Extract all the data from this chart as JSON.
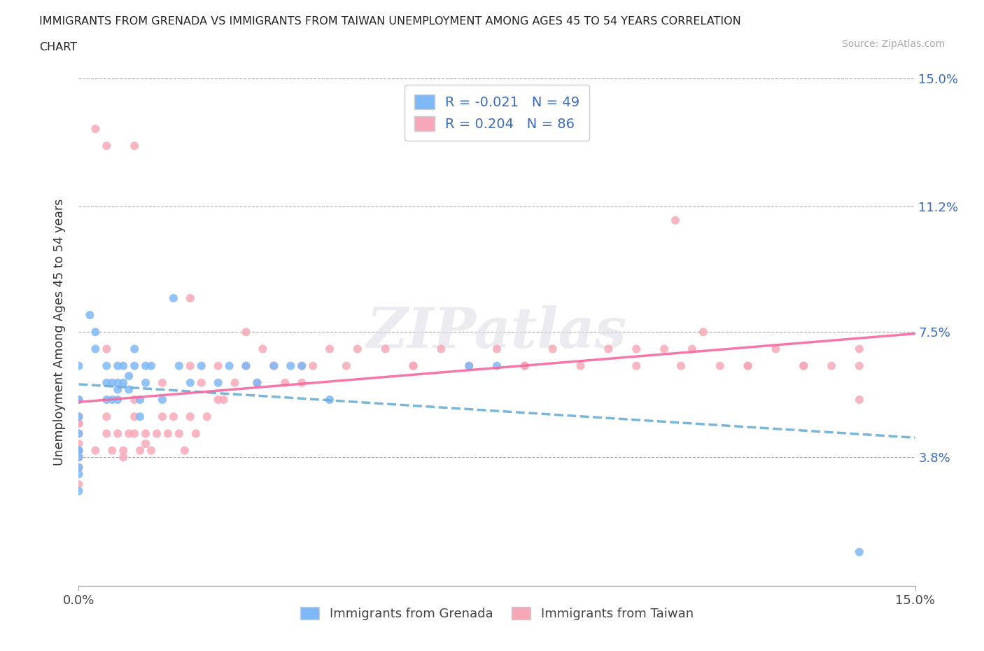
{
  "title_line1": "IMMIGRANTS FROM GRENADA VS IMMIGRANTS FROM TAIWAN UNEMPLOYMENT AMONG AGES 45 TO 54 YEARS CORRELATION",
  "title_line2": "CHART",
  "source_text": "Source: ZipAtlas.com",
  "ylabel": "Unemployment Among Ages 45 to 54 years",
  "xlim": [
    0.0,
    0.15
  ],
  "ylim": [
    0.0,
    0.15
  ],
  "yticks": [
    0.038,
    0.075,
    0.112,
    0.15
  ],
  "ytick_labels": [
    "3.8%",
    "7.5%",
    "11.2%",
    "15.0%"
  ],
  "xtick_vals": [
    0.0,
    0.15
  ],
  "xtick_labels": [
    "0.0%",
    "15.0%"
  ],
  "color_grenada": "#7eb8f7",
  "color_taiwan": "#f7a8b8",
  "color_grenada_line": "#6baed6",
  "color_taiwan_line": "#f768a1",
  "legend_grenada": "Immigrants from Grenada",
  "legend_taiwan": "Immigrants from Taiwan",
  "R_grenada": -0.021,
  "N_grenada": 49,
  "R_taiwan": 0.204,
  "N_taiwan": 86,
  "watermark": "ZIPatlas",
  "bg_color": "#ffffff",
  "text_color_dark": "#222222",
  "text_color_axis": "#3a6bbf",
  "grid_color": "#aaaaaa",
  "grenada_x": [
    0.0,
    0.0,
    0.0,
    0.0,
    0.0,
    0.0,
    0.0,
    0.0,
    0.0,
    0.0,
    0.002,
    0.003,
    0.003,
    0.005,
    0.005,
    0.005,
    0.006,
    0.006,
    0.007,
    0.007,
    0.007,
    0.007,
    0.008,
    0.008,
    0.009,
    0.009,
    0.01,
    0.01,
    0.011,
    0.011,
    0.012,
    0.012,
    0.013,
    0.015,
    0.017,
    0.018,
    0.02,
    0.022,
    0.025,
    0.027,
    0.03,
    0.032,
    0.035,
    0.038,
    0.04,
    0.045,
    0.07,
    0.075,
    0.14
  ],
  "grenada_y": [
    0.065,
    0.055,
    0.05,
    0.045,
    0.04,
    0.04,
    0.038,
    0.035,
    0.033,
    0.028,
    0.08,
    0.07,
    0.075,
    0.065,
    0.06,
    0.055,
    0.06,
    0.055,
    0.065,
    0.06,
    0.058,
    0.055,
    0.065,
    0.06,
    0.062,
    0.058,
    0.07,
    0.065,
    0.055,
    0.05,
    0.065,
    0.06,
    0.065,
    0.055,
    0.085,
    0.065,
    0.06,
    0.065,
    0.06,
    0.065,
    0.065,
    0.06,
    0.065,
    0.065,
    0.065,
    0.055,
    0.065,
    0.065,
    0.01
  ],
  "taiwan_x": [
    0.0,
    0.0,
    0.0,
    0.0,
    0.0,
    0.0,
    0.0,
    0.0,
    0.003,
    0.005,
    0.005,
    0.006,
    0.007,
    0.008,
    0.008,
    0.009,
    0.01,
    0.01,
    0.011,
    0.012,
    0.012,
    0.013,
    0.014,
    0.015,
    0.016,
    0.017,
    0.018,
    0.019,
    0.02,
    0.021,
    0.022,
    0.023,
    0.025,
    0.026,
    0.028,
    0.03,
    0.032,
    0.033,
    0.035,
    0.037,
    0.04,
    0.042,
    0.045,
    0.048,
    0.05,
    0.055,
    0.06,
    0.065,
    0.07,
    0.075,
    0.08,
    0.085,
    0.09,
    0.095,
    0.1,
    0.105,
    0.108,
    0.11,
    0.112,
    0.115,
    0.12,
    0.125,
    0.13,
    0.135,
    0.14,
    0.14,
    0.0,
    0.0,
    0.005,
    0.01,
    0.015,
    0.02,
    0.025,
    0.04,
    0.06,
    0.08,
    0.1,
    0.12,
    0.13,
    0.14,
    0.005,
    0.01,
    0.02,
    0.03,
    0.003,
    0.107
  ],
  "taiwan_y": [
    0.05,
    0.048,
    0.045,
    0.042,
    0.04,
    0.038,
    0.035,
    0.03,
    0.04,
    0.05,
    0.045,
    0.04,
    0.045,
    0.04,
    0.038,
    0.045,
    0.05,
    0.045,
    0.04,
    0.045,
    0.042,
    0.04,
    0.045,
    0.05,
    0.045,
    0.05,
    0.045,
    0.04,
    0.05,
    0.045,
    0.06,
    0.05,
    0.065,
    0.055,
    0.06,
    0.065,
    0.06,
    0.07,
    0.065,
    0.06,
    0.065,
    0.065,
    0.07,
    0.065,
    0.07,
    0.07,
    0.065,
    0.07,
    0.065,
    0.07,
    0.065,
    0.07,
    0.065,
    0.07,
    0.065,
    0.07,
    0.065,
    0.07,
    0.075,
    0.065,
    0.065,
    0.07,
    0.065,
    0.065,
    0.07,
    0.065,
    0.055,
    0.048,
    0.07,
    0.055,
    0.06,
    0.065,
    0.055,
    0.06,
    0.065,
    0.065,
    0.07,
    0.065,
    0.065,
    0.055,
    0.13,
    0.13,
    0.085,
    0.075,
    0.135,
    0.108
  ]
}
